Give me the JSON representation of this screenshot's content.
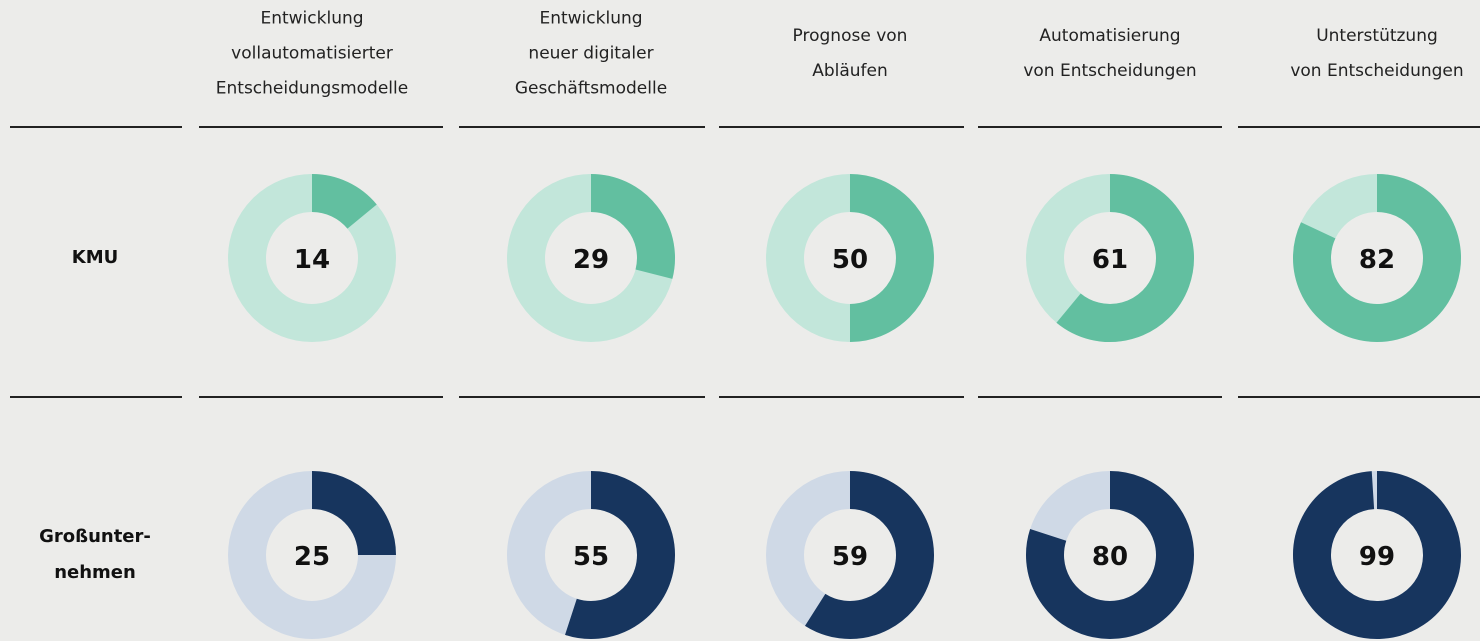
{
  "chart_data": {
    "type": "donut",
    "categories": [
      "Entwicklung\nvollautomatisierter\nEntscheidungsmodelle",
      "Entwicklung\nneuer digitaler\nGeschäftsmodelle",
      "Prognose von\nAbläufen",
      "Automatisierung\nvon Entscheidungen",
      "Unterstützung\nvon Entscheidungen"
    ],
    "series": [
      {
        "name": "KMU",
        "color": "#62bfa0",
        "track_color": "#c2e6da",
        "values": [
          14,
          29,
          50,
          61,
          82
        ]
      },
      {
        "name": "Großunter-\nnehmen",
        "color": "#17355e",
        "track_color": "#cfd9e6",
        "values": [
          25,
          55,
          59,
          80,
          99
        ]
      }
    ],
    "ylim": [
      0,
      100
    ]
  }
}
